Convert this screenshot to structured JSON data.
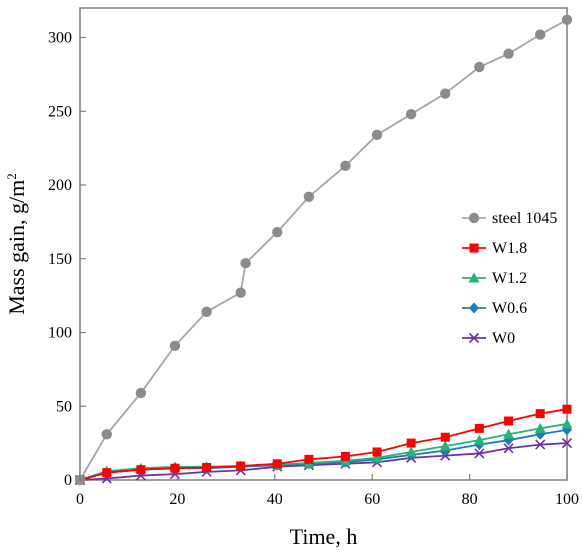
{
  "chart_data": {
    "type": "line",
    "xlabel": "Time, h",
    "ylabel": "Mass gain, g/m",
    "ylabel_superscript": "2",
    "xlim": [
      0,
      100
    ],
    "ylim": [
      0,
      320
    ],
    "xticks": [
      0,
      20,
      40,
      60,
      80,
      100
    ],
    "yticks": [
      0,
      50,
      100,
      150,
      200,
      250,
      300
    ],
    "grid": false,
    "legend_position": "right",
    "series": [
      {
        "name": "steel 1045",
        "color": "#8c8c8c",
        "line_color": "#a6a6a6",
        "marker": "circle",
        "x": [
          0,
          5.5,
          12.5,
          19.5,
          26,
          33,
          34,
          40.5,
          47,
          54.5,
          61,
          68,
          75,
          82,
          88,
          94.5,
          100
        ],
        "y": [
          0,
          31,
          59,
          91,
          114,
          127,
          147,
          168,
          192,
          213,
          234,
          248,
          262,
          280,
          289,
          302,
          312
        ]
      },
      {
        "name": "W1.8",
        "color": "#ff0000",
        "line_color": "#ff0000",
        "marker": "square",
        "x": [
          0,
          5.5,
          12.5,
          19.5,
          26,
          33,
          40.5,
          47,
          54.5,
          61,
          68,
          75,
          82,
          88,
          94.5,
          100
        ],
        "y": [
          0,
          5,
          7,
          8,
          8.5,
          9.5,
          11,
          14,
          16,
          19,
          25,
          29,
          35,
          40,
          45,
          48
        ]
      },
      {
        "name": "W1.2",
        "color": "#22b573",
        "line_color": "#22b573",
        "marker": "triangle",
        "x": [
          0,
          5.5,
          12.5,
          19.5,
          26,
          33,
          40.5,
          47,
          54.5,
          61,
          68,
          75,
          82,
          88,
          94.5,
          100
        ],
        "y": [
          0,
          6,
          8,
          9,
          9,
          9.5,
          10.5,
          11.5,
          13,
          15,
          19,
          23,
          27,
          31,
          35,
          38
        ]
      },
      {
        "name": "W0.6",
        "color": "#1f7ac2",
        "line_color": "#1f7ac2",
        "marker": "diamond",
        "x": [
          0,
          5.5,
          12.5,
          19.5,
          26,
          33,
          40.5,
          47,
          54.5,
          61,
          68,
          75,
          82,
          88,
          94.5,
          100
        ],
        "y": [
          0,
          5,
          7,
          8,
          8,
          9,
          10,
          11,
          12,
          14,
          17,
          20,
          24,
          27,
          31,
          34
        ]
      },
      {
        "name": "W0",
        "color": "#7030a0",
        "line_color": "#7030a0",
        "marker": "x",
        "x": [
          0,
          5.5,
          12.5,
          19.5,
          26,
          33,
          40.5,
          47,
          54.5,
          61,
          68,
          75,
          82,
          88,
          94.5,
          100
        ],
        "y": [
          0,
          1,
          3,
          4,
          5.5,
          6.5,
          9,
          10,
          11,
          12,
          15,
          16.5,
          18,
          21.5,
          24,
          25
        ]
      }
    ]
  }
}
